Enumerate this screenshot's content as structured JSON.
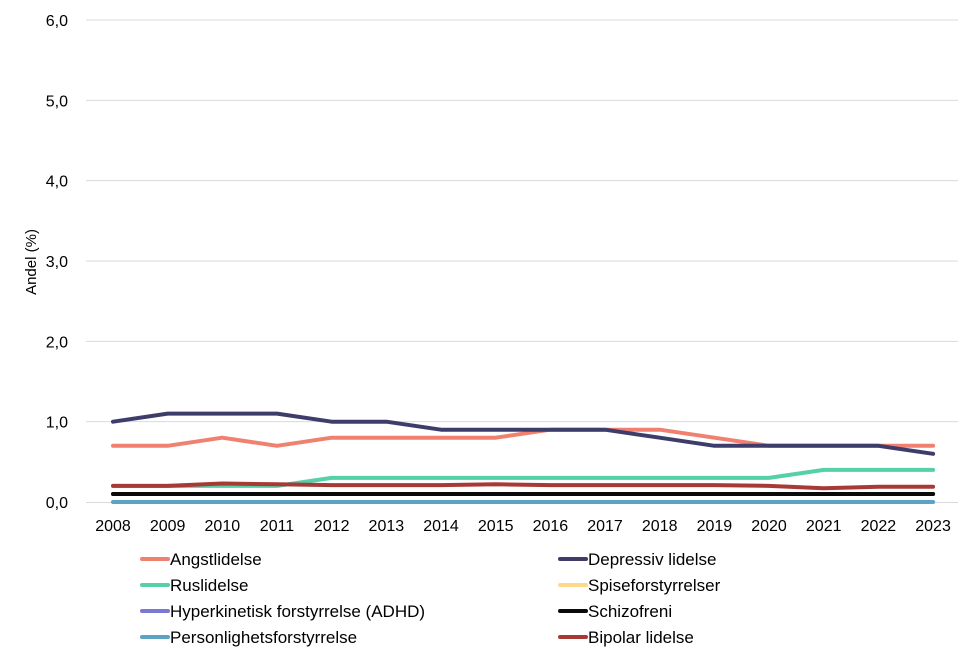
{
  "chart_data": {
    "type": "line",
    "title": "",
    "xlabel": "",
    "ylabel": "Andel (%)",
    "ylim": [
      0,
      6
    ],
    "grid": true,
    "legend_position": "bottom",
    "y_ticks": [
      "0,0",
      "1,0",
      "2,0",
      "3,0",
      "4,0",
      "5,0",
      "6,0"
    ],
    "x": [
      "2008",
      "2009",
      "2010",
      "2011",
      "2012",
      "2013",
      "2014",
      "2015",
      "2016",
      "2017",
      "2018",
      "2019",
      "2020",
      "2021",
      "2022",
      "2023"
    ],
    "series": [
      {
        "name": "Angstlidelse",
        "color": "#f08070",
        "values": [
          0.7,
          0.7,
          0.8,
          0.7,
          0.8,
          0.8,
          0.8,
          0.8,
          0.9,
          0.9,
          0.9,
          0.8,
          0.7,
          0.7,
          0.7,
          0.7
        ]
      },
      {
        "name": "Depressiv lidelse",
        "color": "#3e3c6b",
        "values": [
          1.0,
          1.1,
          1.1,
          1.1,
          1.0,
          1.0,
          0.9,
          0.9,
          0.9,
          0.9,
          0.8,
          0.7,
          0.7,
          0.7,
          0.7,
          0.6
        ]
      },
      {
        "name": "Ruslidelse",
        "color": "#55d0a8",
        "values": [
          0.2,
          0.2,
          0.2,
          0.2,
          0.3,
          0.3,
          0.3,
          0.3,
          0.3,
          0.3,
          0.3,
          0.3,
          0.3,
          0.4,
          0.4,
          0.4
        ]
      },
      {
        "name": "Spiseforstyrrelser",
        "color": "#ffd98a",
        "values": [
          0.1,
          0.1,
          0.1,
          0.1,
          0.1,
          0.1,
          0.1,
          0.1,
          0.1,
          0.1,
          0.1,
          0.1,
          0.1,
          0.1,
          0.1,
          0.1
        ]
      },
      {
        "name": "Hyperkinetisk forstyrrelse (ADHD)",
        "color": "#7b77d6",
        "values": [
          0.1,
          0.1,
          0.1,
          0.1,
          0.1,
          0.1,
          0.1,
          0.1,
          0.1,
          0.1,
          0.1,
          0.1,
          0.1,
          0.1,
          0.1,
          0.1
        ]
      },
      {
        "name": "Schizofreni",
        "color": "#0a0a0a",
        "values": [
          0.1,
          0.1,
          0.1,
          0.1,
          0.1,
          0.1,
          0.1,
          0.1,
          0.1,
          0.1,
          0.1,
          0.1,
          0.1,
          0.1,
          0.1,
          0.1
        ]
      },
      {
        "name": "Personlighetsforstyrrelse",
        "color": "#5aa3c4",
        "values": [
          0.0,
          0.0,
          0.0,
          0.0,
          0.0,
          0.0,
          0.0,
          0.0,
          0.0,
          0.0,
          0.0,
          0.0,
          0.0,
          0.0,
          0.0,
          0.0
        ]
      },
      {
        "name": "Bipolar lidelse",
        "color": "#a83a35",
        "values": [
          0.2,
          0.2,
          0.23,
          0.22,
          0.21,
          0.21,
          0.21,
          0.22,
          0.21,
          0.21,
          0.21,
          0.21,
          0.2,
          0.17,
          0.19,
          0.19
        ]
      }
    ],
    "draw_order": [
      6,
      3,
      4,
      5,
      2,
      7,
      0,
      1
    ]
  }
}
